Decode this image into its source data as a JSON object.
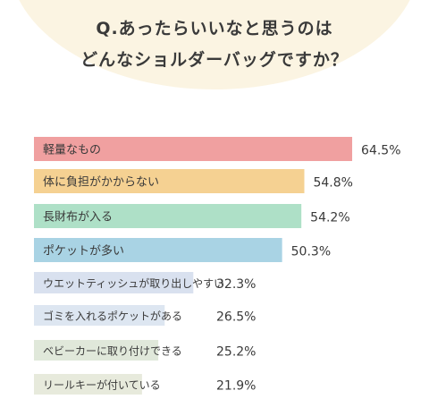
{
  "title_line1": "Q.あったらいいなと思うのは",
  "title_line2": "どんなショルダーバッグですか？",
  "chart_data": {
    "type": "bar",
    "orientation": "horizontal",
    "value_suffix": "%",
    "categories": [
      "軽量なもの",
      "体に負担がかからない",
      "長財布が入る",
      "ポケットが多い",
      "ウエットティッシュが取り出しやすい",
      "ゴミを入れるポケットがある",
      "ベビーカーに取り付けできる",
      "リールキーが付いている"
    ],
    "values": [
      64.5,
      54.8,
      54.2,
      50.3,
      32.3,
      26.5,
      25.2,
      21.9
    ],
    "colors": [
      "#f0a0a0",
      "#f5d192",
      "#aee0c7",
      "#a9d3e4",
      "#d9e1ef",
      "#dde6f1",
      "#e0e8da",
      "#e7eadc"
    ],
    "xlim": [
      0,
      100
    ],
    "grid": false,
    "legend": "none"
  }
}
